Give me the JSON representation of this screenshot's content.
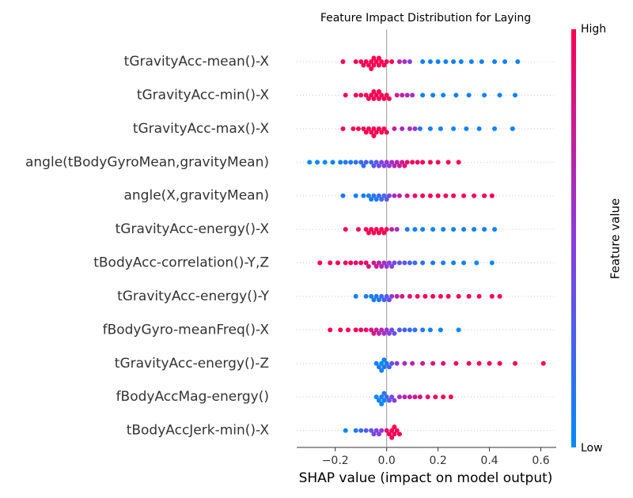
{
  "chart_data": {
    "type": "beeswarm",
    "title": "Feature Impact Distribution for Laying",
    "xlabel": "SHAP value (impact on model output)",
    "colorbar_label": "Feature value",
    "colorbar_high": "High",
    "colorbar_low": "Low",
    "colormap": [
      "#008bfb",
      "#8c3be0",
      "#ff0052"
    ],
    "xlim": [
      -0.35,
      0.66
    ],
    "xticks": [
      {
        "value": -0.2,
        "label": "−0.2"
      },
      {
        "value": 0,
        "label": "0.0"
      },
      0.2,
      0.4,
      0.6
    ],
    "series": [
      {
        "name": "tGravityAcc-mean()-X",
        "values": [
          -0.17,
          -0.12,
          -0.1,
          -0.09,
          -0.08,
          -0.07,
          -0.06,
          -0.06,
          -0.05,
          -0.05,
          -0.04,
          -0.03,
          -0.03,
          -0.02,
          -0.01,
          0,
          0.02,
          0.05,
          0.07,
          0.09,
          0.14,
          0.17,
          0.2,
          0.23,
          0.26,
          0.29,
          0.33,
          0.37,
          0.42,
          0.46,
          0.51
        ],
        "feature_values": [
          1,
          1,
          1,
          1,
          1,
          1,
          1,
          1,
          1,
          1,
          1,
          1,
          1,
          1,
          1,
          1,
          1,
          0.7,
          0.6,
          0.5,
          0.05,
          0.05,
          0.05,
          0.05,
          0.05,
          0.05,
          0.05,
          0.05,
          0.05,
          0.05,
          0.05
        ]
      },
      {
        "name": "tGravityAcc-min()-X",
        "values": [
          -0.16,
          -0.12,
          -0.1,
          -0.08,
          -0.07,
          -0.06,
          -0.05,
          -0.05,
          -0.04,
          -0.03,
          -0.03,
          -0.02,
          -0.01,
          0,
          0.01,
          0.04,
          0.06,
          0.08,
          0.1,
          0.14,
          0.18,
          0.22,
          0.27,
          0.32,
          0.38,
          0.44,
          0.5
        ],
        "feature_values": [
          1,
          1,
          1,
          1,
          1,
          1,
          1,
          1,
          1,
          1,
          1,
          1,
          1,
          1,
          1,
          0.75,
          0.7,
          0.65,
          0.6,
          0.05,
          0.05,
          0.05,
          0.05,
          0.05,
          0.05,
          0.05,
          0.05
        ]
      },
      {
        "name": "tGravityAcc-max()-X",
        "values": [
          -0.17,
          -0.13,
          -0.11,
          -0.09,
          -0.08,
          -0.07,
          -0.06,
          -0.05,
          -0.05,
          -0.04,
          -0.03,
          -0.02,
          -0.01,
          0,
          0.03,
          0.06,
          0.09,
          0.11,
          0.13,
          0.17,
          0.21,
          0.26,
          0.31,
          0.36,
          0.42,
          0.49
        ],
        "feature_values": [
          1,
          1,
          1,
          1,
          1,
          1,
          1,
          1,
          1,
          1,
          1,
          1,
          1,
          1,
          0.7,
          0.65,
          0.6,
          0.55,
          0.1,
          0.05,
          0.05,
          0.05,
          0.05,
          0.05,
          0.05,
          0.05
        ]
      },
      {
        "name": "angle(tBodyGyroMean,gravityMean)",
        "values": [
          -0.3,
          -0.27,
          -0.24,
          -0.21,
          -0.18,
          -0.16,
          -0.14,
          -0.12,
          -0.1,
          -0.09,
          -0.08,
          -0.06,
          -0.05,
          -0.04,
          -0.03,
          -0.02,
          -0.01,
          0,
          0.01,
          0.02,
          0.03,
          0.04,
          0.05,
          0.06,
          0.07,
          0.08,
          0.1,
          0.12,
          0.14,
          0.17,
          0.2,
          0.24,
          0.28
        ],
        "feature_values": [
          0,
          0,
          0,
          0.05,
          0.05,
          0.1,
          0.1,
          0.15,
          0.2,
          0.15,
          0.25,
          0.2,
          0.3,
          0.35,
          0.4,
          0.45,
          0.5,
          0.55,
          0.5,
          0.6,
          0.65,
          0.7,
          0.75,
          0.8,
          0.85,
          0.9,
          0.95,
          0.9,
          1,
          1,
          0.95,
          1,
          1
        ]
      },
      {
        "name": "angle(X,gravityMean)",
        "values": [
          -0.17,
          -0.12,
          -0.09,
          -0.07,
          -0.06,
          -0.05,
          -0.04,
          -0.03,
          -0.02,
          -0.01,
          0,
          0.01,
          0.03,
          0.05,
          0.08,
          0.11,
          0.14,
          0.17,
          0.2,
          0.23,
          0.26,
          0.3,
          0.34,
          0.38,
          0.41
        ],
        "feature_values": [
          0.1,
          0.05,
          0.1,
          0.05,
          0.1,
          0.15,
          0.1,
          0.2,
          0.25,
          0.2,
          0.3,
          0.45,
          0.6,
          0.7,
          0.8,
          0.9,
          0.95,
          1,
          1,
          0.95,
          1,
          1,
          0.95,
          1,
          1
        ]
      },
      {
        "name": "tGravityAcc-energy()-X",
        "values": [
          -0.16,
          -0.11,
          -0.08,
          -0.07,
          -0.06,
          -0.05,
          -0.04,
          -0.03,
          -0.02,
          -0.01,
          0,
          0.02,
          0.04,
          0.08,
          0.11,
          0.14,
          0.18,
          0.22,
          0.26,
          0.3,
          0.34,
          0.38,
          0.42
        ],
        "feature_values": [
          1,
          1,
          1,
          1,
          1,
          1,
          1,
          1,
          1,
          1,
          1,
          0.7,
          0.6,
          0.1,
          0.05,
          0.05,
          0.05,
          0.05,
          0.05,
          0.05,
          0.05,
          0.05,
          0.05
        ]
      },
      {
        "name": "tBodyAcc-correlation()-Y,Z",
        "values": [
          -0.26,
          -0.22,
          -0.19,
          -0.16,
          -0.14,
          -0.12,
          -0.1,
          -0.08,
          -0.07,
          -0.05,
          -0.04,
          -0.03,
          -0.02,
          -0.01,
          0,
          0.01,
          0.02,
          0.03,
          0.05,
          0.07,
          0.09,
          0.11,
          0.14,
          0.18,
          0.22,
          0.26,
          0.3,
          0.35,
          0.41
        ],
        "feature_values": [
          1,
          1,
          1,
          0.95,
          1,
          0.9,
          0.95,
          0.9,
          0.85,
          0.8,
          0.75,
          0.7,
          0.65,
          0.6,
          0.55,
          0.5,
          0.45,
          0.4,
          0.35,
          0.3,
          0.25,
          0.2,
          0.15,
          0.1,
          0.1,
          0.05,
          0.05,
          0,
          0
        ]
      },
      {
        "name": "tGravityAcc-energy()-Y",
        "values": [
          -0.12,
          -0.08,
          -0.06,
          -0.05,
          -0.04,
          -0.03,
          -0.02,
          -0.01,
          0,
          0.01,
          0.02,
          0.04,
          0.06,
          0.09,
          0.12,
          0.15,
          0.18,
          0.21,
          0.24,
          0.28,
          0.32,
          0.36,
          0.41,
          0.44
        ],
        "feature_values": [
          0.05,
          0.1,
          0.05,
          0.1,
          0.15,
          0.1,
          0.2,
          0.25,
          0.3,
          0.4,
          0.55,
          0.7,
          0.8,
          0.9,
          0.95,
          1,
          1,
          0.95,
          1,
          1,
          1,
          1,
          1,
          1
        ]
      },
      {
        "name": "fBodyGyro-meanFreq()-X",
        "values": [
          -0.22,
          -0.18,
          -0.15,
          -0.12,
          -0.1,
          -0.08,
          -0.06,
          -0.05,
          -0.04,
          -0.03,
          -0.02,
          -0.01,
          0,
          0.01,
          0.02,
          0.03,
          0.05,
          0.07,
          0.09,
          0.11,
          0.14,
          0.17,
          0.21,
          0.28
        ],
        "feature_values": [
          1,
          1,
          0.95,
          1,
          0.95,
          0.9,
          0.85,
          0.8,
          0.75,
          0.7,
          0.65,
          0.6,
          0.55,
          0.5,
          0.4,
          0.35,
          0.3,
          0.25,
          0.2,
          0.15,
          0.1,
          0.05,
          0.05,
          0
        ]
      },
      {
        "name": "tGravityAcc-energy()-Z",
        "values": [
          -0.04,
          -0.03,
          -0.02,
          -0.02,
          -0.01,
          -0.01,
          0,
          0.01,
          0.02,
          0.04,
          0.07,
          0.1,
          0.14,
          0.18,
          0.22,
          0.27,
          0.32,
          0.36,
          0.4,
          0.44,
          0.5,
          0.61
        ],
        "feature_values": [
          0.05,
          0.1,
          0,
          0.05,
          0.1,
          0.05,
          0.15,
          0.2,
          0.35,
          0.5,
          0.6,
          0.7,
          0.8,
          0.85,
          0.9,
          0.95,
          1,
          1,
          1,
          1,
          1,
          1
        ]
      },
      {
        "name": "fBodyAccMag-energy()",
        "values": [
          -0.04,
          -0.03,
          -0.02,
          -0.02,
          -0.01,
          -0.01,
          0,
          0.01,
          0.02,
          0.03,
          0.05,
          0.07,
          0.09,
          0.11,
          0.13,
          0.16,
          0.19,
          0.22,
          0.25
        ],
        "feature_values": [
          0,
          0.05,
          0.1,
          0,
          0.05,
          0.15,
          0.2,
          0.3,
          0.4,
          0.5,
          0.6,
          0.7,
          0.75,
          0.8,
          0.85,
          0.9,
          0.95,
          1,
          1
        ]
      },
      {
        "name": "tBodyAccJerk-min()-X",
        "values": [
          -0.16,
          -0.12,
          -0.1,
          -0.08,
          -0.06,
          -0.05,
          -0.04,
          -0.03,
          -0.02,
          0,
          0.01,
          0.02,
          0.02,
          0.03,
          0.03,
          0.04,
          0.05
        ],
        "feature_values": [
          0,
          0.1,
          0.2,
          0.3,
          0.35,
          0.4,
          0.45,
          0.5,
          0.55,
          0.9,
          1,
          1,
          0.95,
          1,
          1,
          0.95,
          1
        ]
      }
    ]
  }
}
